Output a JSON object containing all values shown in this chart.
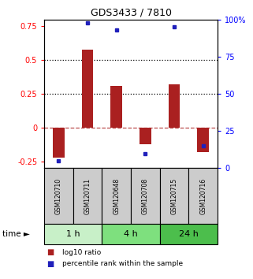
{
  "title": "GDS3433 / 7810",
  "samples": [
    "GSM120710",
    "GSM120711",
    "GSM120648",
    "GSM120708",
    "GSM120715",
    "GSM120716"
  ],
  "groups": [
    {
      "label": "1 h",
      "indices": [
        0,
        1
      ],
      "color": "#c8f0c8"
    },
    {
      "label": "4 h",
      "indices": [
        2,
        3
      ],
      "color": "#7ee07e"
    },
    {
      "label": "24 h",
      "indices": [
        4,
        5
      ],
      "color": "#4cbe4c"
    }
  ],
  "log10_ratio": [
    -0.22,
    0.58,
    0.31,
    -0.12,
    0.32,
    -0.18
  ],
  "percentile_rank": [
    5,
    98,
    93,
    10,
    95,
    15
  ],
  "ylim_left": [
    -0.3,
    0.8
  ],
  "ylim_right": [
    0,
    100
  ],
  "yticks_left": [
    -0.25,
    0.0,
    0.25,
    0.5,
    0.75
  ],
  "yticks_right": [
    0,
    25,
    50,
    75,
    100
  ],
  "ytick_labels_left": [
    "-0.25",
    "0",
    "0.25",
    "0.5",
    "0.75"
  ],
  "ytick_labels_right": [
    "0",
    "25",
    "50",
    "75",
    "100%"
  ],
  "hlines_dotted": [
    0.25,
    0.5
  ],
  "hline_dashed": 0.0,
  "bar_color": "#aa2020",
  "dot_color": "#2020bb",
  "legend_items": [
    {
      "color": "#aa2020",
      "label": "log10 ratio"
    },
    {
      "color": "#2020bb",
      "label": "percentile rank within the sample"
    }
  ],
  "sample_box_color": "#cccccc",
  "time_label": "time ►"
}
